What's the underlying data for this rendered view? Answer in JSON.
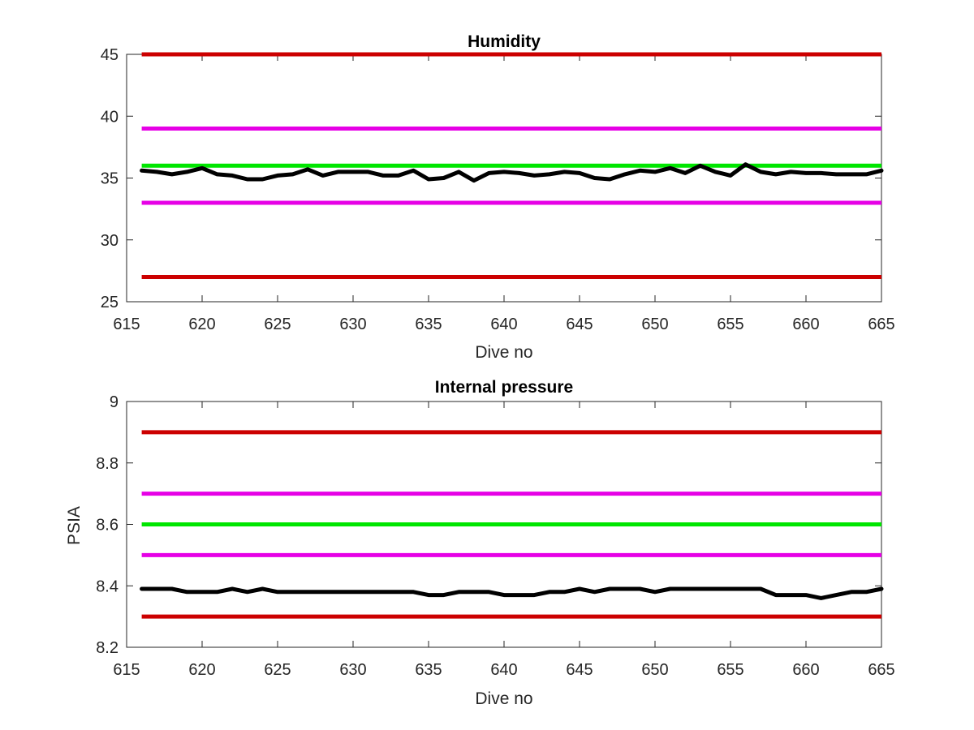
{
  "chart_data": [
    {
      "type": "line",
      "title": "Humidity",
      "xlabel": "Dive no",
      "ylabel": "",
      "xlim": [
        615,
        665
      ],
      "ylim": [
        25,
        45
      ],
      "xticks": [
        615,
        620,
        625,
        630,
        635,
        640,
        645,
        650,
        655,
        660,
        665
      ],
      "yticks": [
        25,
        30,
        35,
        40,
        45
      ],
      "grid": false,
      "reference_lines": [
        {
          "y": 45,
          "x": [
            616,
            665
          ],
          "color": "#cc0000"
        },
        {
          "y": 39,
          "x": [
            616,
            665
          ],
          "color": "#e600e6"
        },
        {
          "y": 36,
          "x": [
            616,
            665
          ],
          "color": "#00e600"
        },
        {
          "y": 33,
          "x": [
            616,
            665
          ],
          "color": "#e600e6"
        },
        {
          "y": 27,
          "x": [
            616,
            665
          ],
          "color": "#cc0000"
        }
      ],
      "series": [
        {
          "color": "#000000",
          "x": [
            616,
            617,
            618,
            619,
            620,
            621,
            622,
            623,
            624,
            625,
            626,
            627,
            628,
            629,
            630,
            631,
            632,
            633,
            634,
            635,
            636,
            637,
            638,
            639,
            640,
            641,
            642,
            643,
            644,
            645,
            646,
            647,
            648,
            649,
            650,
            651,
            652,
            653,
            654,
            655,
            656,
            657,
            658,
            659,
            660,
            661,
            662,
            663,
            664,
            665
          ],
          "values": [
            35.6,
            35.5,
            35.3,
            35.5,
            35.8,
            35.3,
            35.2,
            34.9,
            34.9,
            35.2,
            35.3,
            35.7,
            35.2,
            35.5,
            35.5,
            35.5,
            35.2,
            35.2,
            35.6,
            34.9,
            35.0,
            35.5,
            34.8,
            35.4,
            35.5,
            35.4,
            35.2,
            35.3,
            35.5,
            35.4,
            35.0,
            34.9,
            35.3,
            35.6,
            35.5,
            35.8,
            35.4,
            36.0,
            35.5,
            35.2,
            36.1,
            35.5,
            35.3,
            35.5,
            35.4,
            35.4,
            35.3,
            35.3,
            35.3,
            35.6
          ]
        }
      ]
    },
    {
      "type": "line",
      "title": "Internal pressure",
      "xlabel": "Dive no",
      "ylabel": "PSIA",
      "xlim": [
        615,
        665
      ],
      "ylim": [
        8.2,
        9.0
      ],
      "xticks": [
        615,
        620,
        625,
        630,
        635,
        640,
        645,
        650,
        655,
        660,
        665
      ],
      "yticks": [
        8.2,
        8.4,
        8.6,
        8.8,
        9
      ],
      "ytick_labels": [
        "8.2",
        "8.4",
        "8.6",
        "8.8",
        "9"
      ],
      "grid": false,
      "reference_lines": [
        {
          "y": 8.9,
          "x": [
            616,
            665
          ],
          "color": "#cc0000"
        },
        {
          "y": 8.7,
          "x": [
            616,
            665
          ],
          "color": "#e600e6"
        },
        {
          "y": 8.6,
          "x": [
            616,
            665
          ],
          "color": "#00e600"
        },
        {
          "y": 8.5,
          "x": [
            616,
            665
          ],
          "color": "#e600e6"
        },
        {
          "y": 8.3,
          "x": [
            616,
            665
          ],
          "color": "#cc0000"
        }
      ],
      "series": [
        {
          "color": "#000000",
          "x": [
            616,
            617,
            618,
            619,
            620,
            621,
            622,
            623,
            624,
            625,
            626,
            627,
            628,
            629,
            630,
            631,
            632,
            633,
            634,
            635,
            636,
            637,
            638,
            639,
            640,
            641,
            642,
            643,
            644,
            645,
            646,
            647,
            648,
            649,
            650,
            651,
            652,
            653,
            654,
            655,
            656,
            657,
            658,
            659,
            660,
            661,
            662,
            663,
            664,
            665
          ],
          "values": [
            8.39,
            8.39,
            8.39,
            8.38,
            8.38,
            8.38,
            8.39,
            8.38,
            8.39,
            8.38,
            8.38,
            8.38,
            8.38,
            8.38,
            8.38,
            8.38,
            8.38,
            8.38,
            8.38,
            8.37,
            8.37,
            8.38,
            8.38,
            8.38,
            8.37,
            8.37,
            8.37,
            8.38,
            8.38,
            8.39,
            8.38,
            8.39,
            8.39,
            8.39,
            8.38,
            8.39,
            8.39,
            8.39,
            8.39,
            8.39,
            8.39,
            8.39,
            8.37,
            8.37,
            8.37,
            8.36,
            8.37,
            8.38,
            8.38,
            8.39
          ]
        }
      ]
    }
  ]
}
